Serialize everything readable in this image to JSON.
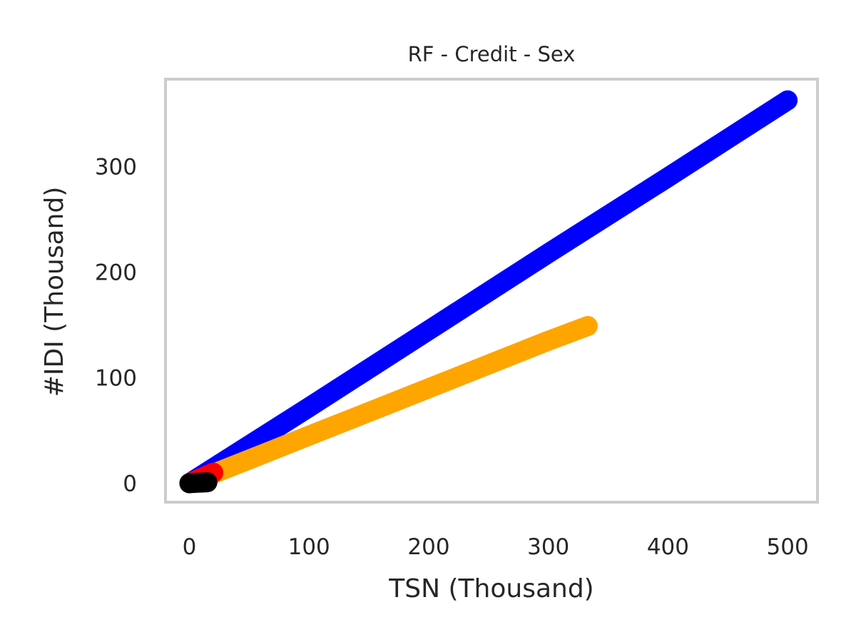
{
  "chart_data": {
    "type": "line",
    "title": "RF - Credit - Sex",
    "xlabel": "TSN (Thousand)",
    "ylabel": "#IDI (Thousand)",
    "xlim": [
      -20,
      525
    ],
    "ylim": [
      -18,
      383
    ],
    "xticks": [
      0,
      100,
      200,
      300,
      400,
      500
    ],
    "yticks": [
      0,
      100,
      200,
      300
    ],
    "grid": false,
    "series": [
      {
        "name": "blue",
        "color": "#0000ff",
        "x": [
          0,
          100,
          200,
          300,
          400,
          500
        ],
        "y": [
          0,
          72,
          145,
          218,
          290,
          363
        ]
      },
      {
        "name": "orange",
        "color": "#ffa500",
        "x": [
          0,
          100,
          200,
          300,
          333
        ],
        "y": [
          0,
          45,
          90,
          135,
          149
        ]
      },
      {
        "name": "red",
        "color": "#ff0000",
        "x": [
          0,
          10,
          20
        ],
        "y": [
          0,
          5,
          10
        ]
      },
      {
        "name": "black",
        "color": "#000000",
        "x": [
          0,
          5,
          10,
          15
        ],
        "y": [
          0,
          0.3,
          0.6,
          0.9
        ]
      }
    ]
  }
}
